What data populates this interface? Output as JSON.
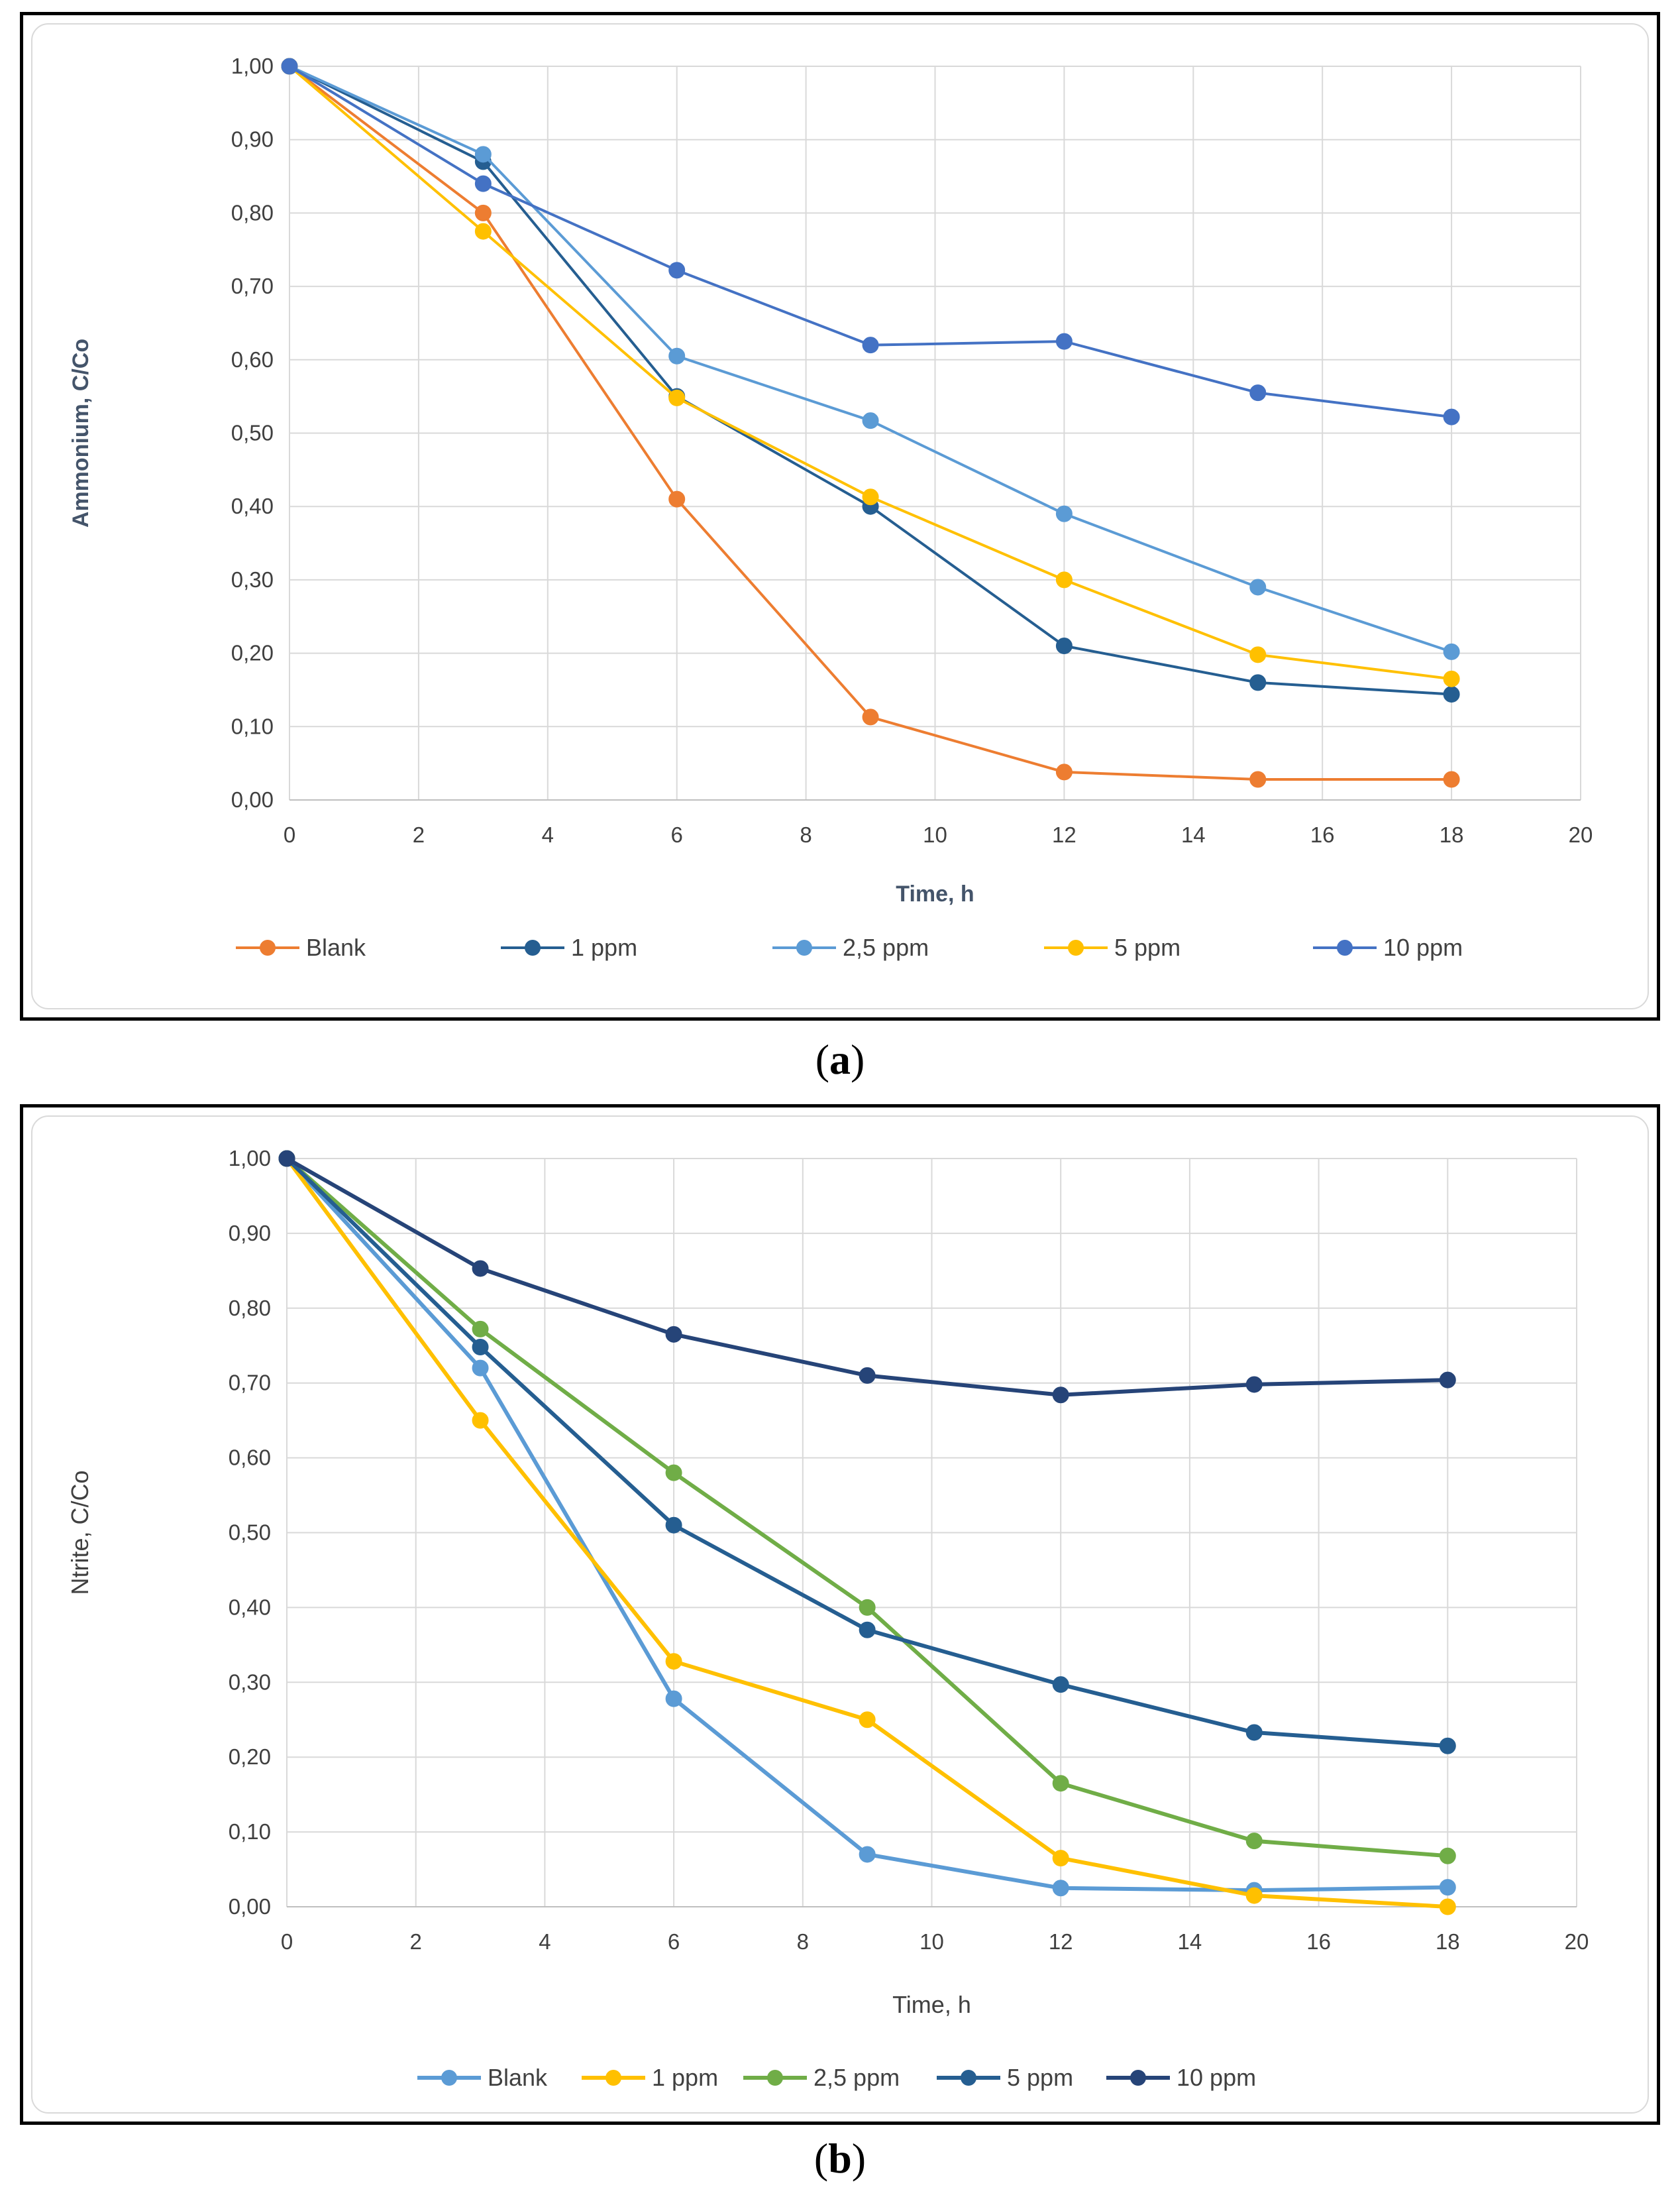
{
  "captions": {
    "a_open": "(",
    "a_letter": "a",
    "a_close": ")",
    "b_open": "(",
    "b_letter": "b",
    "b_close": ")"
  },
  "chart_data": [
    {
      "type": "line",
      "id": "a",
      "title": "",
      "xlabel": "Time, h",
      "ylabel": "Ammonium,  C/Co",
      "xlim": [
        0,
        20
      ],
      "ylim": [
        0,
        1
      ],
      "xticks": [
        "0",
        "2",
        "4",
        "6",
        "8",
        "10",
        "12",
        "14",
        "16",
        "18",
        "20"
      ],
      "yticks": [
        "0,00",
        "0,10",
        "0,20",
        "0,30",
        "0,40",
        "0,50",
        "0,60",
        "0,70",
        "0,80",
        "0,90",
        "1,00"
      ],
      "grid": true,
      "legend": "bottom",
      "x": [
        0,
        3,
        6,
        9,
        12,
        15,
        18
      ],
      "series": [
        {
          "name": "Blank",
          "color": "#ed7d31",
          "values": [
            1.0,
            0.8,
            0.41,
            0.113,
            0.038,
            0.028,
            0.028
          ]
        },
        {
          "name": "1 ppm",
          "color": "#255e91",
          "values": [
            1.0,
            0.87,
            0.55,
            0.4,
            0.21,
            0.16,
            0.144
          ]
        },
        {
          "name": "2,5 ppm",
          "color": "#5b9bd5",
          "values": [
            1.0,
            0.88,
            0.605,
            0.517,
            0.39,
            0.29,
            0.202
          ]
        },
        {
          "name": "5 ppm",
          "color": "#ffc000",
          "values": [
            1.0,
            0.775,
            0.548,
            0.413,
            0.3,
            0.198,
            0.165
          ]
        },
        {
          "name": "10 ppm",
          "color": "#4472c4",
          "values": [
            1.0,
            0.84,
            0.722,
            0.62,
            0.625,
            0.555,
            0.522
          ]
        }
      ]
    },
    {
      "type": "line",
      "id": "b",
      "title": "",
      "xlabel": "Time, h",
      "ylabel": "Ntrite, C/Co",
      "xlim": [
        0,
        20
      ],
      "ylim": [
        0,
        1
      ],
      "xticks": [
        "0",
        "2",
        "4",
        "6",
        "8",
        "10",
        "12",
        "14",
        "16",
        "18",
        "20"
      ],
      "yticks": [
        "0,00",
        "0,10",
        "0,20",
        "0,30",
        "0,40",
        "0,50",
        "0,60",
        "0,70",
        "0,80",
        "0,90",
        "1,00"
      ],
      "grid": true,
      "legend": "bottom",
      "x": [
        0,
        3,
        6,
        9,
        12,
        15,
        18
      ],
      "series": [
        {
          "name": "Blank",
          "color": "#5b9bd5",
          "values": [
            1.0,
            0.72,
            0.278,
            0.07,
            0.025,
            0.022,
            0.026
          ]
        },
        {
          "name": "1 ppm",
          "color": "#ffc000",
          "values": [
            1.0,
            0.65,
            0.328,
            0.25,
            0.065,
            0.015,
            0.0
          ]
        },
        {
          "name": "2,5 ppm",
          "color": "#70ad47",
          "values": [
            1.0,
            0.772,
            0.58,
            0.4,
            0.165,
            0.088,
            0.068
          ]
        },
        {
          "name": "5 ppm",
          "color": "#255e91",
          "values": [
            1.0,
            0.748,
            0.51,
            0.37,
            0.297,
            0.233,
            0.215
          ]
        },
        {
          "name": "10 ppm",
          "color": "#264478",
          "values": [
            1.0,
            0.853,
            0.765,
            0.71,
            0.684,
            0.698,
            0.704
          ]
        }
      ]
    }
  ]
}
